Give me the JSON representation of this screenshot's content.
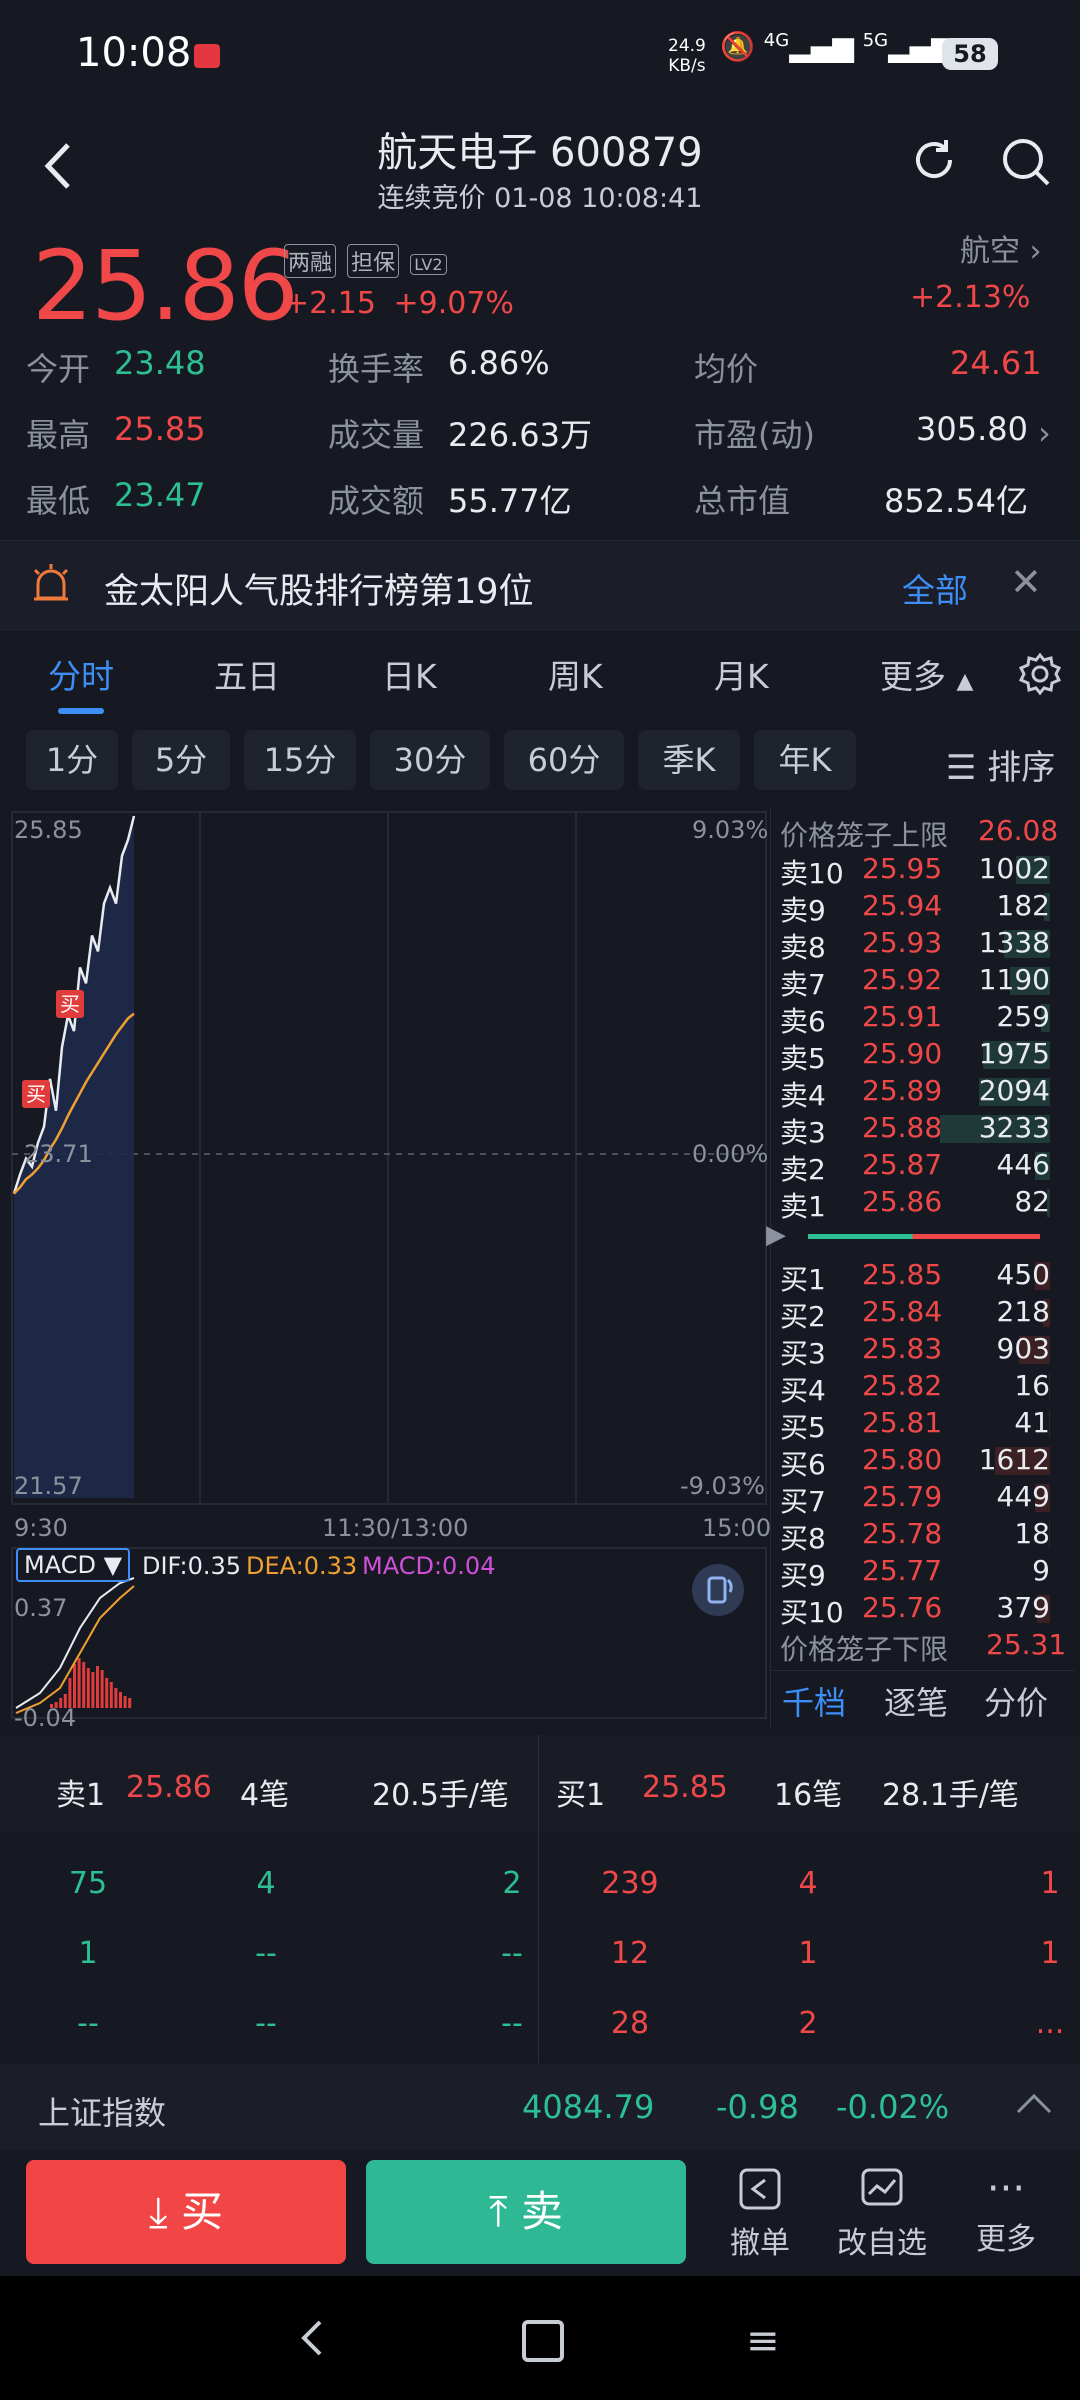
{
  "status_bar": {
    "time": "10:08",
    "net_speed_value": "24.9",
    "net_speed_unit": "KB/s",
    "net_4g": "4G",
    "net_5g": "5G",
    "battery": "58"
  },
  "header": {
    "title": "航天电子 600879",
    "subtitle": "连续竞价 01-08 10:08:41"
  },
  "quote": {
    "price": "25.86",
    "tags": [
      "两融",
      "担保",
      "LV2"
    ],
    "change": "+2.15",
    "change_pct": "+9.07%",
    "sector": "航空",
    "sector_change": "+2.13%",
    "stats": [
      {
        "label": "今开",
        "value": "23.48"
      },
      {
        "label": "换手率",
        "value": "6.86%"
      },
      {
        "label": "均价",
        "value": "24.61"
      },
      {
        "label": "最高",
        "value": "25.85"
      },
      {
        "label": "成交量",
        "value": "226.63万"
      },
      {
        "label": "市盈(动)",
        "value": "305.80"
      },
      {
        "label": "最低",
        "value": "23.47"
      },
      {
        "label": "成交额",
        "value": "55.77亿"
      },
      {
        "label": "总市值",
        "value": "852.54亿"
      }
    ]
  },
  "banner": {
    "text": "金太阳人气股排行榜第19位",
    "link": "全部"
  },
  "tabs": [
    "分时",
    "五日",
    "日K",
    "周K",
    "月K",
    "更多"
  ],
  "periods": [
    "1分",
    "5分",
    "15分",
    "30分",
    "60分",
    "季K",
    "年K"
  ],
  "sort_label": "排序",
  "chart": {
    "y_max": "25.85",
    "y_mid": "23.71",
    "y_min": "21.57",
    "pct_max": "9.03%",
    "pct_mid": "0.00%",
    "pct_min": "-9.03%",
    "x_start": "9:30",
    "x_mid": "11:30/13:00",
    "x_end": "15:00",
    "buy_marker": "买",
    "macd_label": "MACD",
    "dif": "DIF:0.35",
    "dea": "DEA:0.33",
    "macd": "MACD:0.04",
    "macd_max": "0.37",
    "macd_min": "-0.04"
  },
  "chart_data": {
    "type": "line",
    "title": "",
    "ylim": [
      21.57,
      25.85
    ],
    "series": [
      {
        "name": "price",
        "values": [
          23.48,
          23.6,
          23.7,
          23.65,
          23.8,
          23.9,
          24.2,
          24.0,
          24.4,
          24.6,
          24.5,
          24.9,
          24.8,
          25.1,
          25.0,
          25.3,
          25.4,
          25.3,
          25.6,
          25.7,
          25.85
        ]
      },
      {
        "name": "avg",
        "values": [
          23.48,
          23.52,
          23.57,
          23.6,
          23.64,
          23.69,
          23.76,
          23.82,
          23.89,
          23.97,
          24.04,
          24.11,
          24.18,
          24.24,
          24.3,
          24.36,
          24.42,
          24.48,
          24.53,
          24.58,
          24.61
        ]
      }
    ]
  },
  "order_book": {
    "upper_limit_label": "价格笼子上限",
    "upper_limit": "26.08",
    "lower_limit_label": "价格笼子下限",
    "lower_limit": "25.31",
    "asks": [
      {
        "label": "卖10",
        "price": "25.95",
        "vol": "1002"
      },
      {
        "label": "卖9",
        "price": "25.94",
        "vol": "182"
      },
      {
        "label": "卖8",
        "price": "25.93",
        "vol": "1338"
      },
      {
        "label": "卖7",
        "price": "25.92",
        "vol": "1190"
      },
      {
        "label": "卖6",
        "price": "25.91",
        "vol": "259"
      },
      {
        "label": "卖5",
        "price": "25.90",
        "vol": "1975"
      },
      {
        "label": "卖4",
        "price": "25.89",
        "vol": "2094"
      },
      {
        "label": "卖3",
        "price": "25.88",
        "vol": "3233"
      },
      {
        "label": "卖2",
        "price": "25.87",
        "vol": "446"
      },
      {
        "label": "卖1",
        "price": "25.86",
        "vol": "82"
      }
    ],
    "bids": [
      {
        "label": "买1",
        "price": "25.85",
        "vol": "450"
      },
      {
        "label": "买2",
        "price": "25.84",
        "vol": "218"
      },
      {
        "label": "买3",
        "price": "25.83",
        "vol": "903"
      },
      {
        "label": "买4",
        "price": "25.82",
        "vol": "16"
      },
      {
        "label": "买5",
        "price": "25.81",
        "vol": "41"
      },
      {
        "label": "买6",
        "price": "25.80",
        "vol": "1612"
      },
      {
        "label": "买7",
        "price": "25.79",
        "vol": "449"
      },
      {
        "label": "买8",
        "price": "25.78",
        "vol": "18"
      },
      {
        "label": "买9",
        "price": "25.77",
        "vol": "9"
      },
      {
        "label": "买10",
        "price": "25.76",
        "vol": "379"
      }
    ],
    "tabs": [
      "千档",
      "逐笔",
      "分价"
    ]
  },
  "trades": {
    "sell": {
      "label": "卖1",
      "price": "25.86",
      "count": "4笔",
      "avg": "20.5手/笔"
    },
    "buy": {
      "label": "买1",
      "price": "25.85",
      "count": "16笔",
      "avg": "28.1手/笔"
    },
    "sell_rows": [
      [
        "75",
        "4",
        "2"
      ],
      [
        "1",
        "--",
        "--"
      ],
      [
        "--",
        "--",
        "--"
      ]
    ],
    "buy_rows": [
      [
        "239",
        "4",
        "1"
      ],
      [
        "12",
        "1",
        "1"
      ],
      [
        "28",
        "2",
        "..."
      ]
    ]
  },
  "index_bar": {
    "name": "上证指数",
    "value": "4084.79",
    "change": "-0.98",
    "change_pct": "-0.02%"
  },
  "actions": {
    "buy": "买",
    "sell": "卖",
    "cancel": "撤单",
    "watchlist": "改自选",
    "more": "更多"
  },
  "colors": {
    "up": "#f04848",
    "down": "#2dbf94",
    "accent": "#3d8ef5",
    "background": "#161922"
  }
}
